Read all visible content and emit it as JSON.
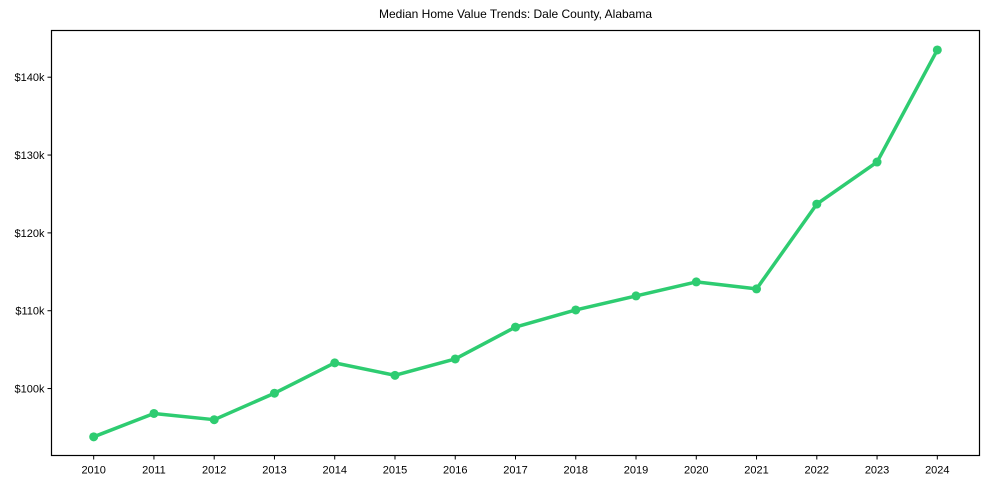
{
  "chart_data": {
    "type": "line",
    "title": "Median Home Value Trends: Dale County, Alabama",
    "xlabel": "",
    "ylabel": "",
    "categories": [
      "2010",
      "2011",
      "2012",
      "2013",
      "2014",
      "2015",
      "2016",
      "2017",
      "2018",
      "2019",
      "2020",
      "2021",
      "2022",
      "2023",
      "2024"
    ],
    "series": [
      {
        "name": "Median Home Value",
        "color": "#2ecc71",
        "marker": "circle",
        "values": [
          93800,
          96800,
          96000,
          99400,
          103300,
          101700,
          103800,
          107900,
          110100,
          111900,
          113700,
          112800,
          123700,
          129100,
          143500
        ]
      }
    ],
    "yticks": [
      100000,
      110000,
      120000,
      130000,
      140000
    ],
    "ytick_labels": [
      "$100k",
      "$110k",
      "$120k",
      "$130k",
      "$140k"
    ],
    "ylim": [
      91400,
      146000
    ],
    "xlim": [
      2009.3,
      2024.7
    ],
    "grid": false,
    "legend": null
  }
}
